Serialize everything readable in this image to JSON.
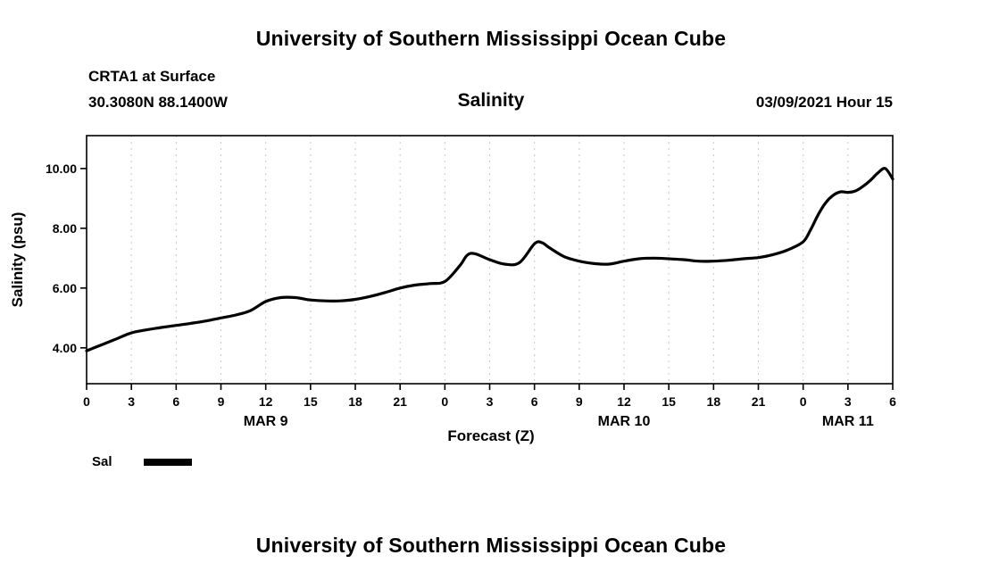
{
  "page": {
    "top_title": "University of Southern Mississippi Ocean Cube",
    "bottom_title": "University of Southern Mississippi Ocean Cube"
  },
  "header": {
    "station": "CRTA1 at Surface",
    "coords": "30.3080N 88.1400W",
    "plot_title": "Salinity",
    "run_time": "03/09/2021 Hour 15"
  },
  "legend": {
    "label": "Sal",
    "color": "#000000"
  },
  "chart_data": {
    "type": "line",
    "title": "Salinity",
    "xlabel": "Forecast (Z)",
    "ylabel": "Salinity (psu)",
    "xlim": [
      0,
      54
    ],
    "ylim": [
      2.8,
      11.1
    ],
    "yticks": [
      4,
      6,
      8,
      10
    ],
    "ytick_labels": [
      "4.00",
      "6.00",
      "8.00",
      "10.00"
    ],
    "xticks": [
      0,
      3,
      6,
      9,
      12,
      15,
      18,
      21,
      24,
      27,
      30,
      33,
      36,
      39,
      42,
      45,
      48,
      51,
      54
    ],
    "xtick_labels": [
      "0",
      "3",
      "6",
      "9",
      "12",
      "15",
      "18",
      "21",
      "0",
      "3",
      "6",
      "9",
      "12",
      "15",
      "18",
      "21",
      "0",
      "3",
      "6"
    ],
    "date_labels": [
      {
        "label": "MAR 9",
        "x": 12
      },
      {
        "label": "MAR 10",
        "x": 36
      },
      {
        "label": "MAR 11",
        "x": 51
      }
    ],
    "grid": "vertical dashed gridlines at every 3-hour tick",
    "legend_position": "below-left",
    "line_color": "#000000",
    "series": [
      {
        "name": "Sal",
        "color": "#000000",
        "x": [
          0,
          1,
          2,
          3,
          4,
          5,
          6,
          7,
          8,
          9,
          10,
          11,
          12,
          13,
          14,
          15,
          16,
          17,
          18,
          19,
          20,
          21,
          22,
          23,
          24,
          25,
          25.5,
          26,
          27,
          28,
          29,
          30,
          30.5,
          31,
          32,
          33,
          34,
          35,
          36,
          37,
          38,
          39,
          40,
          41,
          42,
          43,
          44,
          45,
          46,
          47,
          48,
          48.5,
          49,
          49.5,
          50,
          50.5,
          51,
          51.5,
          52,
          52.5,
          53,
          53.5,
          54
        ],
        "y": [
          3.9,
          4.1,
          4.3,
          4.5,
          4.6,
          4.68,
          4.75,
          4.82,
          4.9,
          5.0,
          5.1,
          5.25,
          5.55,
          5.68,
          5.68,
          5.6,
          5.57,
          5.57,
          5.62,
          5.72,
          5.85,
          6.0,
          6.1,
          6.15,
          6.22,
          6.75,
          7.1,
          7.15,
          6.95,
          6.8,
          6.85,
          7.48,
          7.52,
          7.35,
          7.05,
          6.9,
          6.82,
          6.8,
          6.9,
          6.98,
          7.0,
          6.98,
          6.95,
          6.9,
          6.9,
          6.93,
          6.98,
          7.02,
          7.12,
          7.28,
          7.55,
          7.95,
          8.45,
          8.85,
          9.1,
          9.22,
          9.2,
          9.25,
          9.4,
          9.6,
          9.85,
          10.0,
          9.65
        ]
      }
    ]
  }
}
